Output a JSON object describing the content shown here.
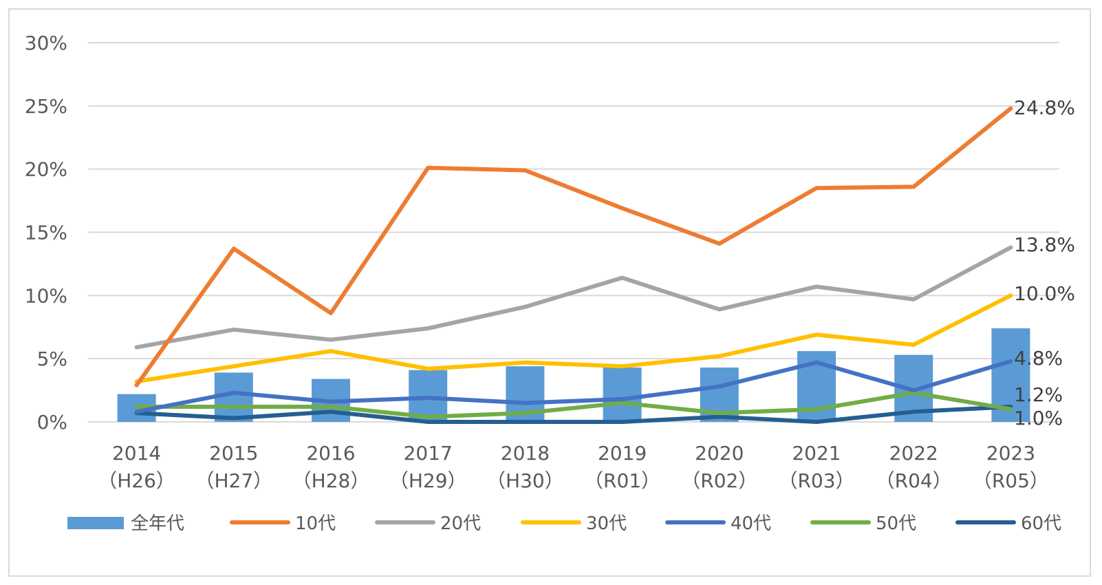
{
  "chart_data": {
    "type": "bar",
    "categories": [
      "2014",
      "2015",
      "2016",
      "2017",
      "2018",
      "2019",
      "2020",
      "2021",
      "2022",
      "2023"
    ],
    "categories_sub": [
      "（H26）",
      "（H27）",
      "（H28）",
      "（H29）",
      "（H30）",
      "（R01）",
      "（R02）",
      "（R03）",
      "（R04）",
      "（R05）"
    ],
    "ylim": [
      0,
      30
    ],
    "yticks": [
      0,
      5,
      10,
      15,
      20,
      25,
      30
    ],
    "ytick_labels": [
      "0%",
      "5%",
      "10%",
      "15%",
      "20%",
      "25%",
      "30%"
    ],
    "grid": true,
    "legend_position": "bottom",
    "bar_series": {
      "name": "全年代",
      "color": "#5b9bd5",
      "values": [
        2.2,
        3.9,
        3.4,
        4.1,
        4.4,
        4.3,
        4.3,
        5.6,
        5.3,
        7.4
      ]
    },
    "series": [
      {
        "name": "10代",
        "color": "#ed7d31",
        "values": [
          2.9,
          13.7,
          8.6,
          20.1,
          19.9,
          16.9,
          14.1,
          18.5,
          18.6,
          24.8
        ],
        "end_label": "24.8%"
      },
      {
        "name": "20代",
        "color": "#a5a5a5",
        "values": [
          5.9,
          7.3,
          6.5,
          7.4,
          9.1,
          11.4,
          8.9,
          10.7,
          9.7,
          13.8
        ],
        "end_label": "13.8%"
      },
      {
        "name": "30代",
        "color": "#ffc000",
        "values": [
          3.2,
          4.4,
          5.6,
          4.2,
          4.7,
          4.4,
          5.2,
          6.9,
          6.1,
          10.0
        ],
        "end_label": "10.0%"
      },
      {
        "name": "40代",
        "color": "#4472c4",
        "values": [
          0.8,
          2.3,
          1.6,
          1.9,
          1.5,
          1.8,
          2.8,
          4.7,
          2.5,
          4.8
        ],
        "end_label": "4.8%"
      },
      {
        "name": "50代",
        "color": "#70ad47",
        "values": [
          1.2,
          1.2,
          1.2,
          0.4,
          0.7,
          1.5,
          0.7,
          1.0,
          2.3,
          1.0
        ],
        "end_label": "1.0%"
      },
      {
        "name": "60代",
        "color": "#255e91",
        "values": [
          0.7,
          0.3,
          0.8,
          0.0,
          0.0,
          0.0,
          0.4,
          0.0,
          0.8,
          1.2
        ],
        "end_label": "1.2%"
      }
    ]
  }
}
